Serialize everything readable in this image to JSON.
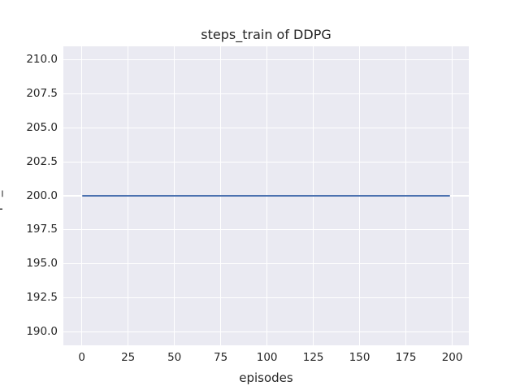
{
  "chart_data": {
    "type": "line",
    "title": "steps_train of DDPG",
    "xlabel": "episodes",
    "ylabel": "steps_train",
    "xlim": [
      -9.95,
      208.95
    ],
    "ylim": [
      189,
      211
    ],
    "xticks": {
      "values": [
        0,
        25,
        50,
        75,
        100,
        125,
        150,
        175,
        200
      ],
      "labels": [
        "0",
        "25",
        "50",
        "75",
        "100",
        "125",
        "150",
        "175",
        "200"
      ]
    },
    "yticks": {
      "values": [
        190.0,
        192.5,
        195.0,
        197.5,
        200.0,
        202.5,
        205.0,
        207.5,
        210.0
      ],
      "labels": [
        "190.0",
        "192.5",
        "195.0",
        "197.5",
        "200.0",
        "202.5",
        "205.0",
        "207.5",
        "210.0"
      ]
    },
    "grid": true,
    "legend": false,
    "series": [
      {
        "name": "steps_train",
        "color": "#4c72b0",
        "x": [
          0,
          199
        ],
        "y": [
          200,
          200
        ]
      }
    ],
    "styles": {
      "figure_bg": "#ffffff",
      "plot_bg": "#eaeaf2",
      "grid_color": "#ffffff",
      "text_color": "#262626"
    }
  }
}
